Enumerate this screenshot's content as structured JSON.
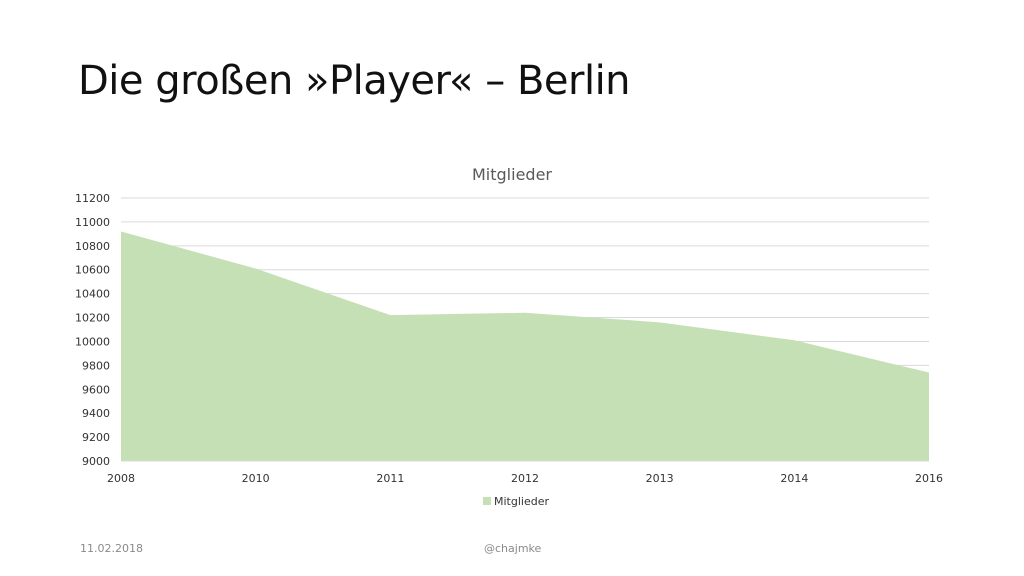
{
  "slide": {
    "title": "Die großen »Player« – Berlin",
    "footer_date": "11.02.2018",
    "footer_handle": "@chajmke"
  },
  "colors": {
    "area_fill": "#c5e0b4",
    "grid": "#d9d9d9",
    "text": "#595959"
  },
  "chart_data": {
    "type": "area",
    "title": "Mitglieder",
    "categories": [
      "2008",
      "2010",
      "2011",
      "2012",
      "2013",
      "2014",
      "2016"
    ],
    "series": [
      {
        "name": "Mitglieder",
        "values": [
          10920,
          10610,
          10220,
          10240,
          10160,
          10010,
          9740
        ]
      }
    ],
    "y_ticks": [
      9000,
      9200,
      9400,
      9600,
      9800,
      10000,
      10200,
      10400,
      10600,
      10800,
      11000,
      11200
    ],
    "ylim": [
      9000,
      11200
    ],
    "grid": true,
    "legend_position": "bottom"
  }
}
